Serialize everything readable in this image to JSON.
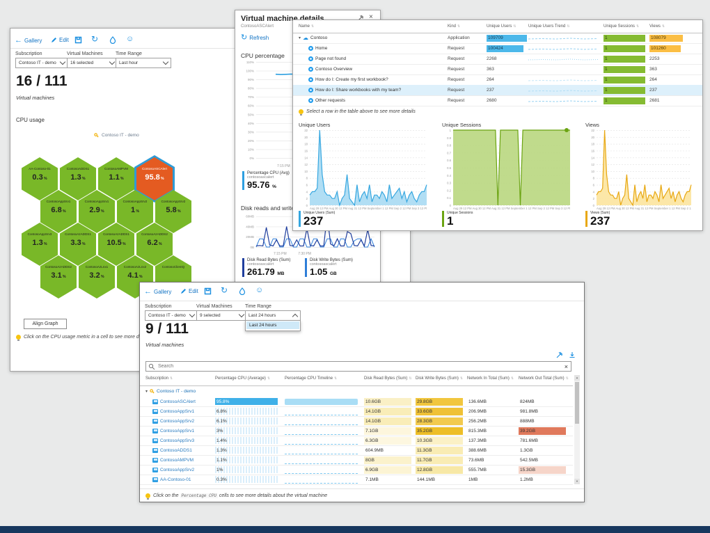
{
  "colors": {
    "accent": "#1b8fe0",
    "hex_green": "#79b828",
    "hex_orange": "#e45b21",
    "hex_ring": "#2e9bd6",
    "blue_bar": "#4cb8ea",
    "green_bar": "#85bb32",
    "yellow_bar": "#fbbe44",
    "selected_row": "#ddf0fb",
    "users_line": "#36a7e0",
    "users_fill": "#a8daf3",
    "sessions_line": "#6ba412",
    "sessions_fill": "#b9d77f",
    "views_line": "#e8a813",
    "views_fill": "#fce49e",
    "disk_read": "#1f3e9e",
    "disk_write": "#2f7ed8",
    "bottom_bar": "#17375e"
  },
  "wa": {
    "toolbar": {
      "gallery": "Gallery",
      "edit": "Edit"
    },
    "filters": [
      {
        "label": "Subscription",
        "value": "Contoso IT - demo"
      },
      {
        "label": "Virtual Machines",
        "value": "16 selected"
      },
      {
        "label": "Time Range",
        "value": "Last hour"
      }
    ],
    "headline": "16 / 111",
    "caption": "Virtual machines",
    "section": "CPU usage",
    "sub_legend": "Contoso IT - demo",
    "align_button": "Align Graph",
    "tip": "Click on the CPU usage metric in a cell to see more details about the virtual machine",
    "hex_rows": [
      [
        {
          "name": "AA-Contoso-01",
          "value": "0.3"
        },
        {
          "name": "ContosoADDS1",
          "value": "1.3"
        },
        {
          "name": "ContosoAMPVM",
          "value": "1.1"
        },
        {
          "name": "ContosoASCAlert",
          "value": "95.8",
          "alert": true
        }
      ],
      [
        {
          "name": "ContosoAppSrv1",
          "value": "6.8"
        },
        {
          "name": "ContosoAppSrv1",
          "value": "2.9"
        },
        {
          "name": "ContosoAppSrv2",
          "value": "1"
        },
        {
          "name": "ContosoAppSrv2",
          "value": "5.8"
        }
      ],
      [
        {
          "name": "ContosoAppSrv3",
          "value": "1.3"
        },
        {
          "name": "ContosoAzADDS1",
          "value": "3.3"
        },
        {
          "name": "ContosoAzADDS1",
          "value": "10.5"
        },
        {
          "name": "ContosoAzADDS2",
          "value": "6.2"
        }
      ],
      [
        {
          "name": "ContosoAzADDS2",
          "value": "3.1"
        },
        {
          "name": "ContosoAzLnx1",
          "value": "3.2"
        },
        {
          "name": "ContosoAzLnx2",
          "value": "4.1"
        },
        {
          "name": "ContosoClientQ",
          "value": ""
        }
      ]
    ]
  },
  "wb": {
    "title": "Virtual machine details",
    "subtitle": "ContosoASCAlert",
    "refresh": "Refresh",
    "cpu_section": "CPU percentage",
    "cpu_chart": {
      "yticks": [
        "110%",
        "100%",
        "90%",
        "80%",
        "70%",
        "60%",
        "50%",
        "40%",
        "30%",
        "20%",
        "10%",
        "0%"
      ],
      "ymax": 110,
      "xlabel": "7:15 PM",
      "values": [
        95.9,
        95.6,
        95.8,
        96.1,
        95.5,
        95.8,
        95.7,
        96,
        95.6,
        95.8,
        95.9,
        95.6,
        95.8,
        95.7,
        95.9,
        95.8,
        95.6,
        95.9,
        95.7,
        95.8
      ]
    },
    "cpu_legend": {
      "name": "Percentage CPU (Avg)",
      "sub": "contosoascalert",
      "value": "95.76",
      "unit": "%"
    },
    "disk_section": "Disk reads and writes",
    "disk_chart": {
      "yticks": [
        "60MB",
        "40MB",
        "20MB",
        "0B"
      ],
      "ytickvals": [
        60,
        40,
        20,
        0
      ],
      "ymax": 65,
      "xlabels": [
        "7:15 PM",
        "7:30 PM"
      ],
      "read": [
        2,
        3,
        2,
        38,
        4,
        2,
        14,
        2,
        2,
        40,
        3,
        2,
        14,
        2,
        2,
        36,
        3,
        2,
        14,
        2,
        2,
        62,
        6,
        2,
        16,
        2,
        2,
        30,
        26,
        3,
        2,
        14,
        2,
        34,
        3,
        2
      ],
      "write": [
        0,
        16,
        16,
        0,
        0,
        16,
        16,
        0,
        0,
        16,
        16,
        0,
        0,
        16,
        16,
        0,
        0,
        16,
        16,
        0,
        0,
        16,
        16,
        0,
        0,
        16,
        16,
        0,
        0,
        12,
        16,
        16,
        0,
        0,
        16,
        0
      ]
    },
    "disk_legends": [
      {
        "name": "Disk Read Bytes (Sum)",
        "sub": "contosoascalert",
        "value": "261.79",
        "unit": "MB"
      },
      {
        "name": "Disk Write Bytes (Sum)",
        "sub": "contosoascalert",
        "value": "1.05",
        "unit": "GB"
      }
    ]
  },
  "wc": {
    "table": {
      "headers": [
        "Name",
        "Kind",
        "Unique Users",
        "Unique Users Trend",
        "Unique Sessions",
        "Views"
      ],
      "rows": [
        {
          "name": "Contoso",
          "kind": "Application",
          "users": "109709",
          "users_bar": 1,
          "sessions": "1",
          "views": "108079",
          "views_bar": 1,
          "level": 0,
          "expander": true,
          "icon": "cloud",
          "trend": "line"
        },
        {
          "name": "Home",
          "kind": "Request",
          "users": "100424",
          "users_bar": 0.92,
          "sessions": "1",
          "views": "101260",
          "views_bar": 0.94,
          "level": 1,
          "icon": "op",
          "trend": "line"
        },
        {
          "name": "Page not found",
          "kind": "Request",
          "users": "2268",
          "sessions": "1",
          "views": "2253",
          "level": 1,
          "icon": "op",
          "trend": "dots"
        },
        {
          "name": "Contoso Overview",
          "kind": "Request",
          "users": "363",
          "sessions": "1",
          "views": "363",
          "level": 1,
          "icon": "op",
          "trend": "none"
        },
        {
          "name": "How do I: Create my first workbook?",
          "kind": "Request",
          "users": "264",
          "sessions": "1",
          "views": "264",
          "level": 1,
          "icon": "op",
          "trend": "faint"
        },
        {
          "name": "How do I: Share workbooks with my team?",
          "kind": "Request",
          "users": "237",
          "sessions": "1",
          "views": "237",
          "level": 1,
          "icon": "op",
          "trend": "faint",
          "selected": true
        },
        {
          "name": "Other requests",
          "kind": "Request",
          "users": "2680",
          "sessions": "1",
          "views": "2681",
          "level": 1,
          "icon": "op",
          "trend": "line"
        }
      ]
    },
    "tip": "Select a row in the table above to see more details",
    "xlabels": [
      "Aug 29 12 PM",
      "Aug 30 12 PM",
      "Aug 31 12 PM",
      "September 1 12 PM",
      "Sep 2 12 PM",
      "Sep 3 12 PM",
      "Sep 4"
    ],
    "xlabels_sessions": [
      "Aug 29 12 PM",
      "Aug 30 12 PM",
      "Aug 31 12 PM",
      "September 1 12 PM",
      "Sep 2 12 PM",
      "Sep 3 12 PM",
      "Sep 4 4:48 AM"
    ],
    "charts": {
      "users": {
        "title": "Unique Users",
        "legend": "Unique Users (Sum)",
        "big": "237",
        "max": 22,
        "yticks": [
          "22",
          "20",
          "18",
          "16",
          "14",
          "12",
          "10",
          "8",
          "6",
          "4",
          "2",
          "0"
        ],
        "values": [
          3,
          4,
          4,
          5,
          22,
          9,
          4,
          3,
          3,
          2,
          2,
          4,
          0,
          2,
          3,
          9,
          2,
          1,
          0,
          6,
          1,
          3,
          4,
          2,
          6,
          1,
          3,
          3,
          2,
          4,
          3,
          1,
          6,
          2,
          3,
          4,
          5,
          2,
          4,
          1,
          3,
          4,
          2,
          1,
          3,
          4,
          4,
          6
        ]
      },
      "sessions": {
        "title": "Unique Sessions",
        "legend": "Unique Sessions",
        "big": "1",
        "max": 1,
        "dot": true,
        "yticks": [
          "1",
          "0.9",
          "0.8",
          "0.7",
          "0.6",
          "0.5",
          "0.4",
          "0.3",
          "0.2",
          "0.1",
          "0"
        ],
        "values": [
          1,
          1,
          1,
          1,
          1,
          1,
          1,
          1,
          1,
          1,
          1,
          1,
          1,
          1,
          1,
          1,
          1,
          1,
          0,
          1,
          1,
          1,
          1,
          1,
          1,
          1,
          1,
          0,
          1,
          1,
          1,
          1,
          1,
          1,
          1,
          1,
          1,
          1,
          1,
          1,
          1,
          1,
          1,
          1,
          1,
          1,
          1,
          1
        ]
      },
      "views": {
        "title": "Views",
        "legend": "Views (Sum)",
        "big": "237",
        "max": 22,
        "yticks": [
          "22",
          "20",
          "18",
          "16",
          "14",
          "12",
          "10",
          "8",
          "6",
          "4",
          "2",
          "0"
        ],
        "values": [
          3,
          4,
          4,
          5,
          22,
          9,
          4,
          3,
          3,
          2,
          2,
          4,
          0,
          2,
          3,
          9,
          2,
          1,
          0,
          6,
          1,
          3,
          4,
          2,
          6,
          1,
          3,
          3,
          2,
          4,
          3,
          1,
          6,
          2,
          3,
          4,
          5,
          2,
          4,
          1,
          3,
          4,
          2,
          1,
          3,
          4,
          4,
          6
        ]
      }
    }
  },
  "wd": {
    "toolbar": {
      "gallery": "Gallery",
      "edit": "Edit"
    },
    "filters": [
      {
        "label": "Subscription",
        "value": "Contoso IT - demo"
      },
      {
        "label": "Virtual Machines",
        "value": "9 selected"
      },
      {
        "label": "Time Range",
        "value": "Last 24 hours",
        "open": true,
        "option": "Last 24 hours"
      }
    ],
    "headline": "9 / 111",
    "caption": "Virtual machines",
    "search_placeholder": "Search",
    "table": {
      "headers": [
        "Subscription",
        "Percentage CPU (Average)",
        "Percentage CPU Timeline",
        "Disk Read Bytes (Sum)",
        "Disk Write Bytes (Sum)",
        "Network In Total (Sum)",
        "Network Out Total (Sum)"
      ],
      "group": "Contoso IT - demo",
      "rows": [
        {
          "name": "ContosoASCAlert",
          "cpu": "95.8%",
          "cpu_full": true,
          "timeline": "block",
          "dr": "10.6GB",
          "drc": "#faf0c6",
          "dw": "29.8GB",
          "dwc": "#f1c63e",
          "ni": "136.6MB",
          "no": "824MB"
        },
        {
          "name": "ContosoAppSrv1",
          "cpu": "6.8%",
          "timeline": "spark",
          "dr": "14.1GB",
          "drc": "#f9edb8",
          "dw": "33.6GB",
          "dwc": "#efc136",
          "ni": "206.9MB",
          "no": "981.8MB"
        },
        {
          "name": "ContosoAppSrv2",
          "cpu": "6.1%",
          "timeline": "spark",
          "dr": "14.1GB",
          "drc": "#f9edb8",
          "dw": "28.3GB",
          "dwc": "#f2ca4e",
          "ni": "256.2MB",
          "no": "888MB"
        },
        {
          "name": "ContosoAppSrv1",
          "cpu": "3%",
          "timeline": "spark",
          "dr": "7.1GB",
          "drc": "#fdf6dd",
          "dw": "35.2GB",
          "dwc": "#edbe27",
          "ni": "815.3MB",
          "no": "39.2GB",
          "noc": "#e0795c"
        },
        {
          "name": "ContosoAppSrv3",
          "cpu": "1.4%",
          "timeline": "spark",
          "dr": "6.3GB",
          "drc": "#fdf7e0",
          "dw": "10.3GB",
          "dwc": "#fbf1c6",
          "ni": "137.3MB",
          "no": "781.6MB"
        },
        {
          "name": "ContosoADDS1",
          "cpu": "1.3%",
          "timeline": "spark",
          "dr": "604.9MB",
          "dw": "11.3GB",
          "dwc": "#f9ecb4",
          "ni": "388.6MB",
          "no": "1.3GB"
        },
        {
          "name": "ContosoAMPVM",
          "cpu": "1.1%",
          "timeline": "spark",
          "dr": "8GB",
          "drc": "#fbf2cc",
          "dw": "11.7GB",
          "dwc": "#f9ecb4",
          "ni": "73.6MB",
          "no": "542.5MB"
        },
        {
          "name": "ContosoAppSrv2",
          "cpu": "1%",
          "timeline": "spark",
          "dr": "6.9GB",
          "drc": "#fcf4d4",
          "dw": "12.8GB",
          "dwc": "#f7e8a6",
          "ni": "555.7MB",
          "no": "15.3GB",
          "noc": "#f6d5c9"
        },
        {
          "name": "AA-Contoso-01",
          "cpu": "0.3%",
          "timeline": "spark",
          "dr": "7.1MB",
          "dw": "144.1MB",
          "ni": "1MB",
          "no": "1.2MB"
        }
      ]
    },
    "tip_pre": "Click on the ",
    "tip_code": "Percentage CPU",
    "tip_post": " cells to see more details about the virtual machine"
  }
}
